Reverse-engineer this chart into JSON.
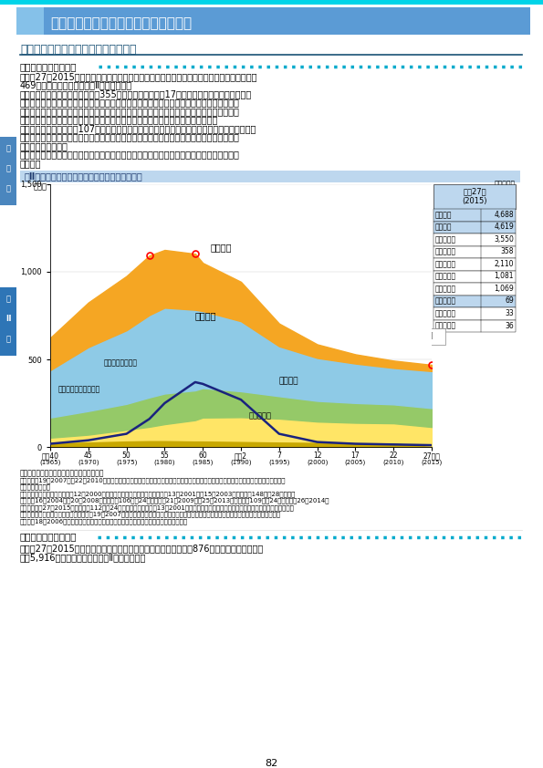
{
  "page_bg": "#ffffff",
  "header_bg": "#5b9bd5",
  "header_text": "第２節　我が国の水産業をめぐる動き",
  "header_text_color": "#ffffff",
  "section_title": "（１）漁業・養殖業の国内生産の動向",
  "section_title_color": "#1a5276",
  "subsection1": "（国内生産量の動向）",
  "body_lines": [
    "　平成27（2015）年の我が国の漁業・養殖業生産量は、前年から８万トン（２％）減少し、",
    "469万トンとなりました（図Ⅱ－２－１）。",
    "　このうち、海面漁業の漁獲量は355万トンで、前年から17万トン（５％）減少しました。",
    "これは主に、主産地であるオホーツク海沿岸で爆弾低気圧の被害を受けたホタテガイや、海",
    "流の影響により我が国沿岸に好漁場が形成されず資源量も減少しているサンマの漁獲量が減",
    "少したこと等によります。一方、マイワシやサバ類等では漁獲量が増加しました。",
    "　海面養殖業の収獲量は107万トンで、前年から８万トン（８％）増加しました。魚種別には、",
    "青森県で斃死が少なく生育の良かったホタテガイ、兵庫県で生育の良かったノリ類等で収獲",
    "量が増加しました。",
    "　また、内水面漁業・養殖業の生産量は６万９千トンで、前年から５千トン（７％）増加し",
    "ました。"
  ],
  "chart_title": "図Ⅱ－２－１　漁業・養殖業の国内生産量の推移",
  "chart_title_bg": "#bdd7ee",
  "chart_title_text_color": "#1e3a6e",
  "source_text": "資料：農林水産省「漁業・養殖業生産統計」",
  "note_lines": [
    "注１）平成19（2007）～22（2010）年については、漁業・養殖業生産量の内訳である「遠洋漁業」、「沖合漁業」及び「沿岸漁業」は推計",
    "　　　値である。",
    "２）内水面漁業生産量は、平成12（2000）年以前は全ての河川及び湖沼、平成13（2001）～15（2003）年は主要148河川28湖沼、平",
    "　　　成16（2004）～20（2008）年は主要106河川24湖沼、平成21（2009）～25（2013）年は主要109河川24湖沼、平成26（2014）",
    "　　　年及び27（2015）年は主要112河川24湖沼の値である。平成13（2001）年以降の内水面養殖業生産量は、マス類、アユ、コイ及びウ",
    "　　　ナギの４魚種の収獲量であり、平成19（2007）年以降の収獲量は、琵琶湖、霞ヶ浦及び北浦において養殖されたその他の収獲量を含む。",
    "３）平成18（2006）年以降の内水面漁業の生産量には、遊漁者による採捕は含まれない。"
  ],
  "footer_subsection": "（国内生産額の動向）",
  "footer_lines": [
    "　平成27（2015）年の我が国の漁業・養殖業生産額は、前年から876億円（６％）増加し、",
    "１兆5,916億円となりました（図Ⅱ－２－２）。"
  ],
  "page_number": "82",
  "tab1_chars": [
    "第",
    "１",
    "部"
  ],
  "tab2_chars": [
    "第",
    "Ⅱ",
    "章"
  ],
  "tab1_color": "#4a86be",
  "tab2_color": "#2e75b6",
  "header_top_line_color": "#00d4e8",
  "teal_dot_color": "#00aacc",
  "row_labels": [
    "合　　計",
    "海　　面",
    "　漁　　獲",
    "　遠洋漁業",
    "　沖合漁業",
    "　沿岸漁業",
    "　養　　殖",
    "内　水　面",
    "　漁　　獲",
    "　養　　殖"
  ],
  "row_values": [
    "4,688",
    "4,619",
    "3,550",
    "358",
    "2,110",
    "1,081",
    "1,069",
    "69",
    "33",
    "36"
  ],
  "row_bgs": [
    "#bdd7ee",
    "#bdd7ee",
    "#ffffff",
    "#ffffff",
    "#ffffff",
    "#ffffff",
    "#ffffff",
    "#bdd7ee",
    "#ffffff",
    "#ffffff"
  ]
}
